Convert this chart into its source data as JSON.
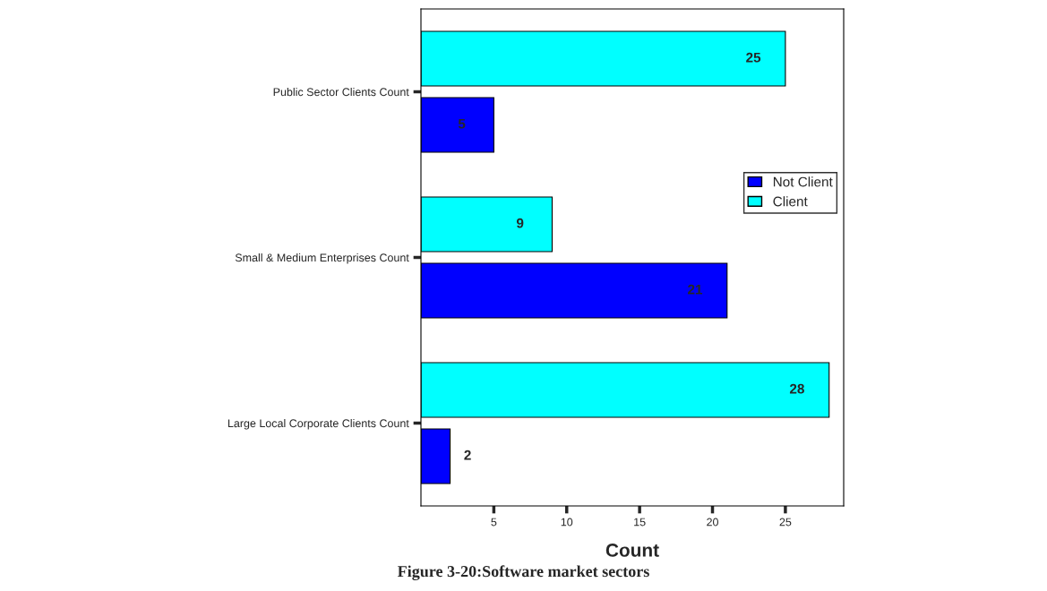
{
  "chart_data": {
    "type": "bar",
    "orientation": "horizontal",
    "title": "Figure 3-20:Software market sectors",
    "xlabel": "Count",
    "categories": [
      "Public Sector Clients Count",
      "Small & Medium Enterprises Count",
      "Large Local Corporate Clients Count"
    ],
    "series": [
      {
        "name": "Not Client",
        "color": "#0000ff",
        "values": [
          5,
          21,
          2
        ]
      },
      {
        "name": "Client",
        "color": "#00ffff",
        "values": [
          25,
          9,
          28
        ]
      }
    ],
    "xlim": [
      0,
      29
    ],
    "xticks": [
      5,
      10,
      15,
      20,
      25
    ],
    "data_labels": true,
    "legend": "right",
    "grid": false
  }
}
